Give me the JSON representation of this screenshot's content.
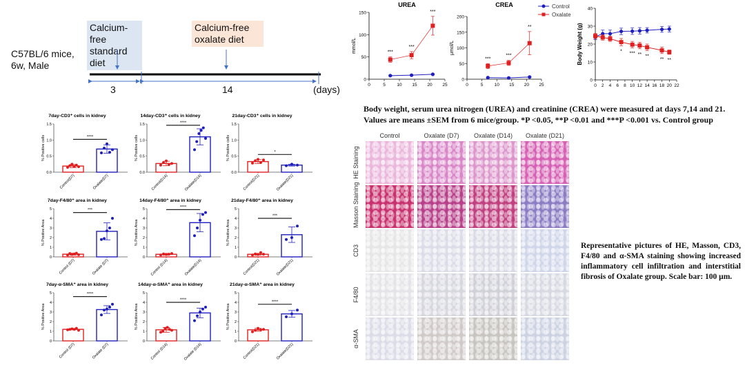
{
  "timeline": {
    "subject": "C57BL/6 mice, 6w, Male",
    "phase1": "Calcium-free standard diet",
    "phase2": "Calcium-free oxalate diet",
    "phase1_days": "3",
    "phase2_days": "14",
    "unit": "(days)",
    "phase1_color": "#dce6f2",
    "phase2_color": "#fbe5d6"
  },
  "legend": {
    "control": "Control",
    "oxalate": "Oxalate",
    "control_color": "#1f1fbf",
    "oxalate_color": "#e02020"
  },
  "caption1": {
    "line1": "Body weight, serum urea nitrogen (UREA) and creatinine (CREA) were measured at  days 7,14 and 21.",
    "line2": "Values are means ±SEM from 6 mice/group. *P <0.05, **P <0.01 and ***P <0.001 vs. Control group"
  },
  "histology": {
    "columns": [
      "Control",
      "Oxalate  (D7)",
      "Oxalate  (D14)",
      "Oxalate  (D21)"
    ],
    "rows": [
      "HE  Staining",
      "Masson  Staining",
      "CD3",
      "F4/80",
      "α-SMA"
    ],
    "caption": "Representative pictures of HE, Masson, CD3, F4/80 and α-SMA staining showing increased inflammatory cell infiltration and interstitial fibrosis of Oxalate group. Scale bar: 100 μm."
  },
  "chart_data": [
    {
      "type": "line",
      "id": "urea",
      "title": "UREA",
      "xlabel": "Days of high Oxalate Diet",
      "ylabel": "mmol/L",
      "xlim": [
        0,
        25
      ],
      "xticks": [
        0,
        5,
        10,
        15,
        20,
        25
      ],
      "ylim": [
        0,
        150
      ],
      "yticks": [
        0,
        50,
        100,
        150
      ],
      "x": [
        7,
        14,
        21
      ],
      "series": [
        {
          "name": "Control",
          "values": [
            8,
            9,
            11
          ],
          "err": [
            1,
            1,
            1
          ]
        },
        {
          "name": "Oxalate",
          "values": [
            44,
            54,
            120
          ],
          "err": [
            6,
            8,
            21
          ]
        }
      ],
      "significance": [
        "***",
        "***",
        "***"
      ]
    },
    {
      "type": "line",
      "id": "crea",
      "title": "CREA",
      "xlabel": "Days of high Oxalate Diet",
      "ylabel": "μmol/L",
      "xlim": [
        0,
        25
      ],
      "xticks": [
        0,
        5,
        10,
        15,
        20,
        25
      ],
      "ylim": [
        0,
        200
      ],
      "yticks": [
        0,
        50,
        100,
        150,
        200
      ],
      "x": [
        7,
        14,
        21
      ],
      "series": [
        {
          "name": "Control",
          "values": [
            5,
            4,
            7
          ],
          "err": [
            1,
            1,
            1
          ]
        },
        {
          "name": "Oxalate",
          "values": [
            42,
            52,
            115
          ],
          "err": [
            8,
            8,
            37
          ]
        }
      ],
      "significance": [
        "***",
        "***",
        "**"
      ]
    },
    {
      "type": "line",
      "id": "bw",
      "title": "",
      "xlabel": "Days of high Oxalate Diet",
      "ylabel": "Body Weight (g)",
      "xlim": [
        0,
        22
      ],
      "xticks": [
        0,
        2,
        4,
        6,
        8,
        10,
        12,
        14,
        16,
        18,
        20,
        22
      ],
      "ylim": [
        0,
        40
      ],
      "yticks": [
        0,
        10,
        20,
        30,
        40
      ],
      "x": [
        0,
        2,
        4,
        7,
        10,
        12,
        14,
        18,
        20
      ],
      "series": [
        {
          "name": "Control",
          "values": [
            24,
            25.8,
            25.8,
            27.1,
            27.2,
            27.4,
            27.7,
            28.2,
            28.4
          ],
          "err": [
            1.5,
            2,
            2,
            1.8,
            1.8,
            1.8,
            1.5,
            1.6,
            1.6
          ]
        },
        {
          "name": "Oxalate",
          "values": [
            24.5,
            23.7,
            23,
            21.1,
            19.7,
            19.2,
            18.2,
            16.5,
            15.5
          ],
          "err": [
            1.5,
            1.5,
            1.5,
            2,
            1.8,
            1.8,
            1.8,
            1.8,
            1.2
          ]
        }
      ],
      "significance": [
        "",
        "",
        "",
        "*",
        "***",
        "**",
        "**",
        "**",
        "**"
      ]
    },
    {
      "type": "bar",
      "title": "7day-CD3⁺ cells in kidney",
      "ylabel": "% Positive cells",
      "ylim": [
        0,
        1.5
      ],
      "yticks": [
        "0.0",
        "0.5",
        "1.0",
        "1.5"
      ],
      "categories": [
        "Control(D7)",
        "Oxalate(D7)"
      ],
      "values": [
        0.19,
        0.72
      ],
      "err": [
        0.05,
        0.13
      ],
      "points": [
        [
          0.15,
          0.2,
          0.25,
          0.18,
          0.22,
          0.17
        ],
        [
          0.6,
          0.75,
          0.88,
          0.62,
          0.7
        ]
      ],
      "significance": "****",
      "sig_y": 1.02
    },
    {
      "type": "bar",
      "title": "14day-CD3⁺ cells in kidney",
      "ylabel": "% Positive cells",
      "ylim": [
        0,
        1.5
      ],
      "yticks": [
        "0.0",
        "0.5",
        "1.0",
        "1.5"
      ],
      "categories": [
        "Control(D14)",
        "Oxalate(D14)"
      ],
      "values": [
        0.27,
        1.1
      ],
      "err": [
        0.07,
        0.25
      ],
      "points": [
        [
          0.22,
          0.3,
          0.35,
          0.24,
          0.27
        ],
        [
          0.7,
          0.95,
          1.2,
          1.3,
          1.38,
          1.05
        ]
      ],
      "significance": "****",
      "sig_y": 1.46
    },
    {
      "type": "bar",
      "title": "21day-CD3⁺ cells in kidney",
      "ylabel": "% Positive cells",
      "ylim": [
        0,
        1.5
      ],
      "yticks": [
        "0.0",
        "0.5",
        "1.0",
        "1.5"
      ],
      "categories": [
        "Control(D21)",
        "Oxalate(D21)"
      ],
      "values": [
        0.33,
        0.22
      ],
      "err": [
        0.06,
        0.03
      ],
      "points": [
        [
          0.28,
          0.35,
          0.4,
          0.3,
          0.38
        ],
        [
          0.2,
          0.25,
          0.22
        ]
      ],
      "significance": "*",
      "sig_y": 0.55
    },
    {
      "type": "bar",
      "title": "7day-F4/80⁺ area in kidney",
      "ylabel": "% Positive Area",
      "ylim": [
        0,
        5
      ],
      "yticks": [
        "0",
        "1",
        "2",
        "3",
        "4",
        "5"
      ],
      "categories": [
        "Control (D7)",
        "Oxalate (D7)"
      ],
      "values": [
        0.28,
        2.65
      ],
      "err": [
        0.1,
        0.88
      ],
      "points": [
        [
          0.2,
          0.35,
          0.25,
          0.3,
          0.38,
          0.22
        ],
        [
          1.8,
          1.9,
          2.7,
          3.0,
          4.0
        ]
      ],
      "significance": "***",
      "sig_y": 4.6
    },
    {
      "type": "bar",
      "title": "14day-F4/80⁺ area in kidney",
      "ylabel": "% Positive Area",
      "ylim": [
        0,
        5
      ],
      "yticks": [
        "0",
        "1",
        "2",
        "3",
        "4",
        "5"
      ],
      "categories": [
        "Control (D14)",
        "Oxalate(D14)"
      ],
      "values": [
        0.27,
        3.55
      ],
      "err": [
        0.1,
        0.95
      ],
      "points": [
        [
          0.2,
          0.3,
          0.25,
          0.28,
          0.35
        ],
        [
          2.2,
          3.0,
          3.8,
          4.4,
          4.6
        ]
      ],
      "significance": "****",
      "sig_y": 4.9
    },
    {
      "type": "bar",
      "title": "21day-F4/80⁺ area in kidney",
      "ylabel": "% Positive Area",
      "ylim": [
        0,
        5
      ],
      "yticks": [
        "0",
        "1",
        "2",
        "3",
        "4",
        "5"
      ],
      "categories": [
        "Control(D21)",
        "Oxalate(D21)"
      ],
      "values": [
        0.27,
        2.3
      ],
      "err": [
        0.1,
        0.8
      ],
      "points": [
        [
          0.2,
          0.3,
          0.25,
          0.45,
          0.28
        ],
        [
          1.8,
          2.0,
          3.2
        ]
      ],
      "significance": "***",
      "sig_y": 4.0
    },
    {
      "type": "bar",
      "title": "7day-α-SMA⁺ area in kidney",
      "ylabel": "% Positive Area",
      "ylim": [
        0,
        5
      ],
      "yticks": [
        "0",
        "1",
        "2",
        "3",
        "4",
        "5"
      ],
      "categories": [
        "Control (D7)",
        "Oxalate (D7)"
      ],
      "values": [
        1.2,
        3.25
      ],
      "err": [
        0.05,
        0.4
      ],
      "points": [
        [
          1.15,
          1.2,
          1.25,
          1.2,
          1.3,
          1.1
        ],
        [
          2.7,
          3.2,
          3.3,
          3.5,
          3.8
        ]
      ],
      "significance": "****",
      "sig_y": 4.6
    },
    {
      "type": "bar",
      "title": "14day-α-SMA⁺ area in kidney",
      "ylabel": "% Positive Area",
      "ylim": [
        0,
        5
      ],
      "yticks": [
        "0",
        "1",
        "2",
        "3",
        "4",
        "5"
      ],
      "categories": [
        "Control (D14)",
        "Oxalate (D14)"
      ],
      "values": [
        1.15,
        2.9
      ],
      "err": [
        0.25,
        0.5
      ],
      "points": [
        [
          0.9,
          1.0,
          1.3,
          1.4,
          1.2,
          1.1
        ],
        [
          2.1,
          2.6,
          3.0,
          3.3,
          3.5
        ]
      ],
      "significance": "****",
      "sig_y": 4.0
    },
    {
      "type": "bar",
      "title": "21day-α-SMA⁺ area in kidney",
      "ylabel": "% Positive Area",
      "ylim": [
        0,
        5
      ],
      "yticks": [
        "0",
        "1",
        "2",
        "3",
        "4",
        "5"
      ],
      "categories": [
        "Control(D21)",
        "Oxalate(D21)"
      ],
      "values": [
        1.15,
        2.8
      ],
      "err": [
        0.15,
        0.35
      ],
      "points": [
        [
          0.95,
          1.1,
          1.3,
          1.15,
          1.2
        ],
        [
          2.5,
          2.8,
          3.2
        ]
      ],
      "significance": "****",
      "sig_y": 3.8
    }
  ]
}
